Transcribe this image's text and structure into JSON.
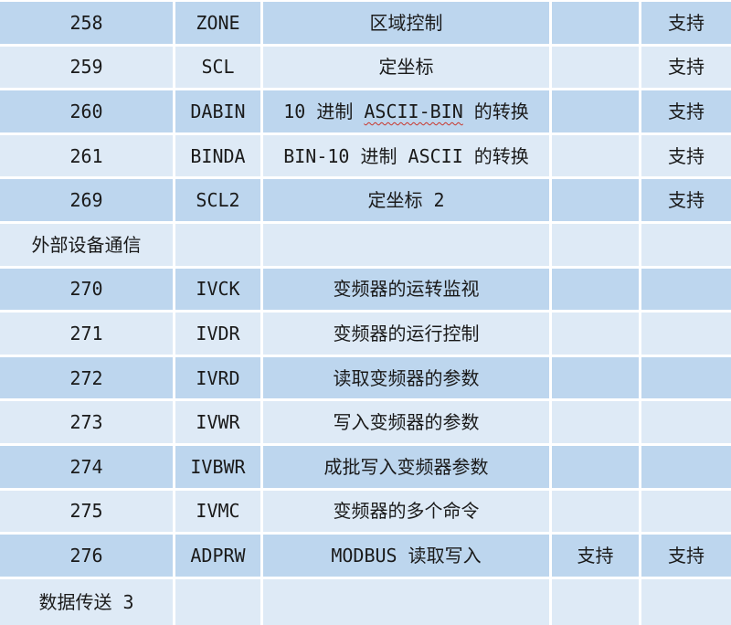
{
  "document": {
    "type": "instruction-support-table",
    "colors": {
      "row_band_dark": "#bdd6ee",
      "row_band_light": "#deeaf6",
      "grid_line": "#ffffff",
      "text": "#1a1a1a",
      "spellcheck_underline": "#c8352a"
    },
    "table": {
      "columns": [
        "instruction-number",
        "mnemonic",
        "description",
        "support-1",
        "support-2"
      ],
      "rows": [
        {
          "type": "data",
          "number": "258",
          "mnemonic": "ZONE",
          "description": [
            {
              "text": "区域控制",
              "misspelled": false
            }
          ],
          "support1": "",
          "support2": "支持"
        },
        {
          "type": "data",
          "number": "259",
          "mnemonic": "SCL",
          "description": [
            {
              "text": "定坐标",
              "misspelled": false
            }
          ],
          "support1": "",
          "support2": "支持"
        },
        {
          "type": "data",
          "number": "260",
          "mnemonic": "DABIN",
          "description": [
            {
              "text": "10 进制 ",
              "misspelled": false
            },
            {
              "text": "ASCII-BIN",
              "misspelled": true
            },
            {
              "text": " 的转换",
              "misspelled": false
            }
          ],
          "support1": "",
          "support2": "支持"
        },
        {
          "type": "data",
          "number": "261",
          "mnemonic": "BINDA",
          "description": [
            {
              "text": "BIN-10 进制 ASCII 的转换",
              "misspelled": false
            }
          ],
          "support1": "",
          "support2": "支持"
        },
        {
          "type": "data",
          "number": "269",
          "mnemonic": "SCL2",
          "description": [
            {
              "text": "定坐标 2",
              "misspelled": false
            }
          ],
          "support1": "",
          "support2": "支持"
        },
        {
          "type": "section",
          "label": "外部设备通信"
        },
        {
          "type": "data",
          "number": "270",
          "mnemonic": "IVCK",
          "description": [
            {
              "text": "变频器的运转监视",
              "misspelled": false
            }
          ],
          "support1": "",
          "support2": ""
        },
        {
          "type": "data",
          "number": "271",
          "mnemonic": "IVDR",
          "description": [
            {
              "text": "变频器的运行控制",
              "misspelled": false
            }
          ],
          "support1": "",
          "support2": ""
        },
        {
          "type": "data",
          "number": "272",
          "mnemonic": "IVRD",
          "description": [
            {
              "text": "读取变频器的参数",
              "misspelled": false
            }
          ],
          "support1": "",
          "support2": ""
        },
        {
          "type": "data",
          "number": "273",
          "mnemonic": "IVWR",
          "description": [
            {
              "text": "写入变频器的参数",
              "misspelled": false
            }
          ],
          "support1": "",
          "support2": ""
        },
        {
          "type": "data",
          "number": "274",
          "mnemonic": "IVBWR",
          "description": [
            {
              "text": "成批写入变频器参数",
              "misspelled": false
            }
          ],
          "support1": "",
          "support2": ""
        },
        {
          "type": "data",
          "number": "275",
          "mnemonic": "IVMC",
          "description": [
            {
              "text": "变频器的多个命令",
              "misspelled": false
            }
          ],
          "support1": "",
          "support2": ""
        },
        {
          "type": "data",
          "number": "276",
          "mnemonic": "ADPRW",
          "description": [
            {
              "text": "MODBUS 读取写入",
              "misspelled": false
            }
          ],
          "support1": "支持",
          "support2": "支持"
        },
        {
          "type": "section",
          "label": "数据传送 3"
        }
      ]
    }
  }
}
